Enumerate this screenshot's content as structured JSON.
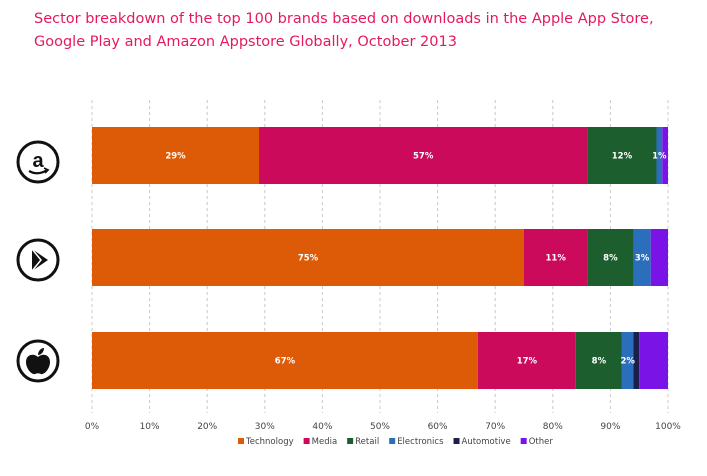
{
  "title": "Sector breakdown of the top 100 brands based on downloads in the Apple App Store, Google Play and Amazon Appstore Globally, October 2013",
  "chart_data": {
    "type": "bar",
    "orientation": "horizontal",
    "stacked": true,
    "categories": [
      "Amazon Appstore",
      "Google Play",
      "Apple App Store"
    ],
    "category_icons": [
      "amazon-logo-icon",
      "google-play-logo-icon",
      "apple-logo-icon"
    ],
    "series": [
      {
        "name": "Technology",
        "color": "#dd5a06",
        "values": [
          29,
          75,
          67
        ],
        "labels": [
          "29%",
          "75%",
          "67%"
        ]
      },
      {
        "name": "Media",
        "color": "#cc0a5c",
        "values": [
          57,
          11,
          17
        ],
        "labels": [
          "57%",
          "11%",
          "17%"
        ]
      },
      {
        "name": "Retail",
        "color": "#1c5e2e",
        "values": [
          12,
          8,
          8
        ],
        "labels": [
          "12%",
          "8%",
          "8%"
        ]
      },
      {
        "name": "Electronics",
        "color": "#2a6ebc",
        "values": [
          1,
          3,
          2
        ],
        "labels": [
          "1%",
          "3%",
          "2%"
        ]
      },
      {
        "name": "Automotive",
        "color": "#1b1f4a",
        "values": [
          0,
          0,
          1
        ],
        "labels": [
          "",
          "",
          ""
        ]
      },
      {
        "name": "Other",
        "color": "#7a14e6",
        "values": [
          1,
          3,
          5
        ],
        "labels": [
          "",
          "",
          ""
        ]
      }
    ],
    "xlim": [
      0,
      100
    ],
    "xticks": [
      "0%",
      "10%",
      "20%",
      "30%",
      "40%",
      "50%",
      "60%",
      "70%",
      "80%",
      "90%",
      "100%"
    ],
    "grid": "vertical dashed",
    "legend_position": "bottom"
  }
}
